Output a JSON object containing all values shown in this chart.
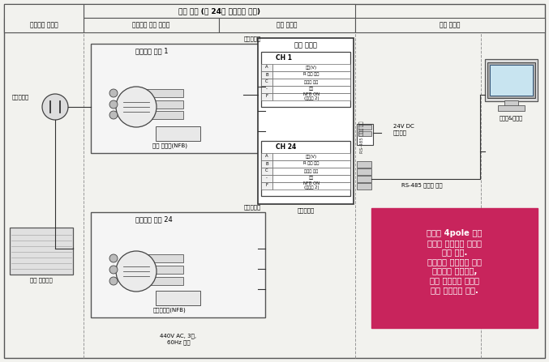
{
  "title": "냉동 스택 (총 24개 리셉터클 박스)",
  "col1_label": "컨테이너 이적장",
  "col2a_label": "리셉터클 박스 설치대",
  "col2b_label": "신호 제어반",
  "col3_label": "중앙 감시실",
  "box1_title": "리셉터블 박스 1",
  "box1_sensor": "전류검출기",
  "box1_nfb": "전원 개폐기(NFB)",
  "box24_title": "리셉터블 박스 24",
  "box24_sensor": "전류검출기",
  "box24_nfb": "전원차폐기(NFB)",
  "power_label": "전원플러그",
  "container_label": "냉동 컨테이너",
  "converter_title": "신호 변환기",
  "ch1_label": "CH 1",
  "ch24_label": "CH 24",
  "ch_labels": [
    "전압(V)",
    "R 전류 측정",
    "접지수 저장",
    "전류",
    "NFB ON\n(릴레이 2)"
  ],
  "ch_cols": [
    "A",
    "B",
    "C",
    "-",
    "F"
  ],
  "dc24v_label": "24V DC\n전원공급",
  "rs485_label": "RS-485 시리얼 통신",
  "rs485_vertical": "RS-485 시리얼 통신",
  "signal_converter_bottom": "신호변환기",
  "ac_label": "440V AC, 3상,\n60Hz 전원",
  "pink_box_text": "기존의 4pole 감시\n대신에 공급전원 감시로\n대체 가능.\n리셉터글 박스내에 전류\n검출기만 설치하면,\n추가 배선이나 설비가\n전혀 필요하지 않음.",
  "pink_color": "#C8245C",
  "bg_color": "#F2F2EE",
  "line_color": "#333333",
  "box_bg": "#FFFFFF",
  "monitor_color": "#B8D8EC",
  "monitor_screen_color": "#C8E4F0"
}
